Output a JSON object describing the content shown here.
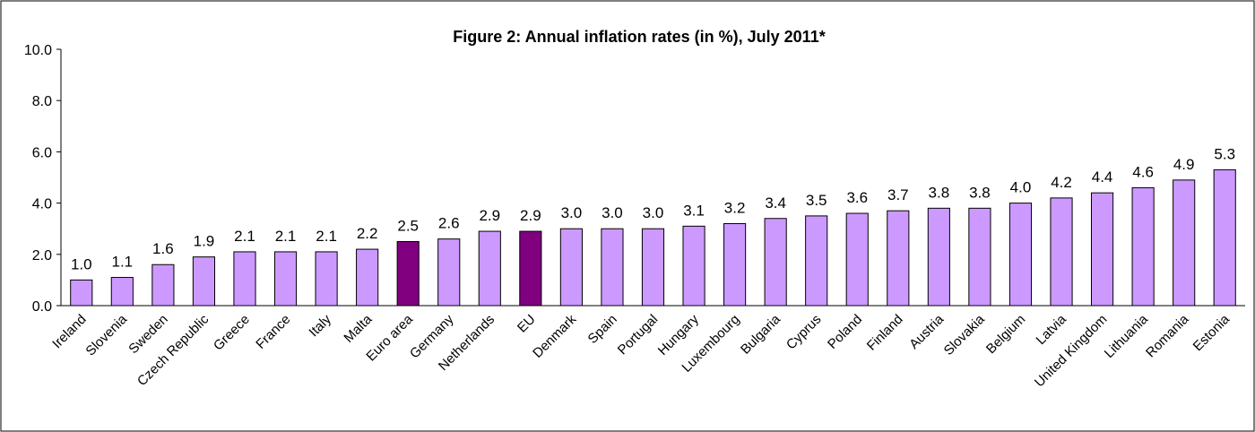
{
  "chart_data": {
    "type": "bar",
    "title": "Figure 2: Annual inflation rates (in %), July 2011*",
    "xlabel": "",
    "ylabel": "",
    "ylim": [
      0,
      10
    ],
    "yticks": [
      "0.0",
      "2.0",
      "4.0",
      "6.0",
      "8.0",
      "10.0"
    ],
    "grid": false,
    "legend": "none",
    "categories": [
      "Ireland",
      "Slovenia",
      "Sweden",
      "Czech Republic",
      "Greece",
      "France",
      "Italy",
      "Malta",
      "Euro area",
      "Germany",
      "Netherlands",
      "EU",
      "Denmark",
      "Spain",
      "Portugal",
      "Hungary",
      "Luxembourg",
      "Bulgaria",
      "Cyprus",
      "Poland",
      "Finland",
      "Austria",
      "Slovakia",
      "Belgium",
      "Latvia",
      "United Kingdom",
      "Lithuania",
      "Romania",
      "Estonia"
    ],
    "values": [
      1.0,
      1.1,
      1.6,
      1.9,
      2.1,
      2.1,
      2.1,
      2.2,
      2.5,
      2.6,
      2.9,
      2.9,
      3.0,
      3.0,
      3.0,
      3.1,
      3.2,
      3.4,
      3.5,
      3.6,
      3.7,
      3.8,
      3.8,
      4.0,
      4.2,
      4.4,
      4.6,
      4.9,
      5.3
    ],
    "value_labels": [
      "1.0",
      "1.1",
      "1.6",
      "1.9",
      "2.1",
      "2.1",
      "2.1",
      "2.2",
      "2.5",
      "2.6",
      "2.9",
      "2.9",
      "3.0",
      "3.0",
      "3.0",
      "3.1",
      "3.2",
      "3.4",
      "3.5",
      "3.6",
      "3.7",
      "3.8",
      "3.8",
      "4.0",
      "4.2",
      "4.4",
      "4.6",
      "4.9",
      "5.3"
    ],
    "colors": {
      "default_bar": "#CC99FF",
      "highlight_bar": "#800080",
      "bar_stroke": "#000000",
      "axis": "#000000"
    },
    "highlighted": [
      "Euro area",
      "EU"
    ]
  }
}
